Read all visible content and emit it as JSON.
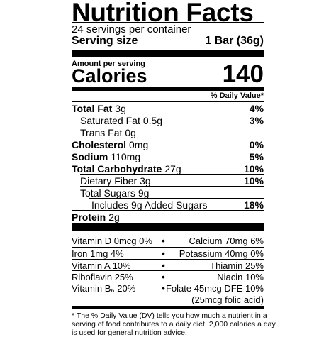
{
  "header": {
    "title": "Nutrition Facts",
    "servings": "24 servings per container",
    "serving_size_label": "Serving size",
    "serving_size": "1 Bar (36g)"
  },
  "calories": {
    "amount_per_serving": "Amount per serving",
    "label": "Calories",
    "value": 140
  },
  "daily_value_heading": "% Daily Value*",
  "nutrients": [
    {
      "name": "Total Fat",
      "amount": "3g",
      "dv": "4%"
    },
    {
      "name": "Saturated Fat",
      "amount": "0.5g",
      "dv": "3%"
    },
    {
      "name": "Trans Fat",
      "amount": "0g"
    },
    {
      "name": "Cholesterol",
      "amount": "0mg",
      "dv": "0%"
    },
    {
      "name": "Sodium",
      "amount": "110mg",
      "dv": "5%"
    },
    {
      "name": "Total Carbohydrate",
      "amount": "27g",
      "dv": "10%"
    },
    {
      "name": "Dietary Fiber",
      "amount": "3g",
      "dv": "10%"
    },
    {
      "name": "Total Sugars",
      "amount": "9g"
    },
    {
      "name": "Includes 9g Added Sugars",
      "dv": "18%"
    },
    {
      "name": "Protein",
      "amount": "2g"
    }
  ],
  "vitamins": [
    {
      "left": "Vitamin D 0mcg 0%",
      "right": "Calcium 70mg 6%"
    },
    {
      "left": "Iron 1mg 4%",
      "right": "Potassium 40mg 0%"
    },
    {
      "left": "Vitamin A 10%",
      "right": "Thiamin 25%"
    },
    {
      "left": "Riboflavin 25%",
      "right": "Niacin 10%"
    },
    {
      "left": "Vitamin B₆ 20%",
      "right": "Folate 45mcg DFE 10%",
      "right_note": "(25mcg folic acid)"
    }
  ],
  "footnote": [
    "* The % Daily Value (DV) tells you how much a nutrient in a",
    "serving of food contributes to a daily diet. 2,000 calories a day",
    "is used for general nutrition advice."
  ]
}
